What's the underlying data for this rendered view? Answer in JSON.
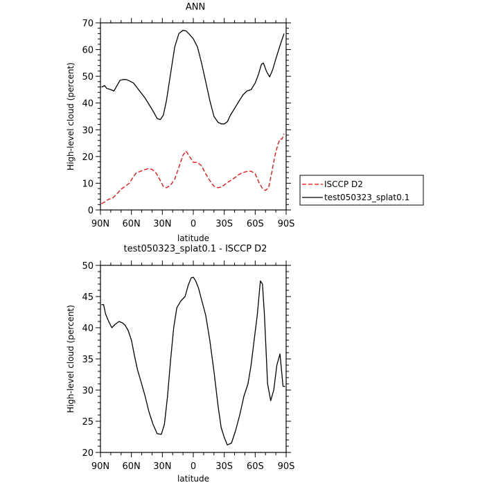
{
  "chart_data": [
    {
      "type": "line",
      "title": "ANN",
      "xlabel": "latitude",
      "ylabel": "High-level cloud (percent)",
      "xlim": [
        90,
        -90
      ],
      "ylim": [
        0,
        70
      ],
      "x_ticks": [
        {
          "value": 90,
          "label": "90N"
        },
        {
          "value": 60,
          "label": "60N"
        },
        {
          "value": 30,
          "label": "30N"
        },
        {
          "value": 0,
          "label": "0"
        },
        {
          "value": -30,
          "label": "30S"
        },
        {
          "value": -60,
          "label": "60S"
        },
        {
          "value": -90,
          "label": "90S"
        }
      ],
      "y_ticks": [
        0,
        10,
        20,
        30,
        40,
        50,
        60,
        70
      ],
      "grid": false,
      "legend_position": "right",
      "series": [
        {
          "name": "ISCCP D2",
          "color": "#ff0000",
          "dash": "dashed",
          "x": [
            89,
            86,
            82,
            78,
            74,
            70,
            66,
            62,
            58,
            55,
            52,
            48,
            44,
            40,
            36,
            32,
            29,
            26,
            22,
            18,
            14,
            10,
            7,
            4,
            0,
            -4,
            -8,
            -12,
            -16,
            -20,
            -24,
            -28,
            -32,
            -36,
            -40,
            -44,
            -48,
            -52,
            -56,
            -60,
            -64,
            -67,
            -70,
            -73,
            -76,
            -79,
            -82,
            -84,
            -86,
            -88
          ],
          "y": [
            2.3,
            3,
            4,
            4.5,
            6,
            7.8,
            8.8,
            10,
            12.5,
            14,
            14.3,
            15,
            15.4,
            15.2,
            13.8,
            11,
            8.8,
            8.3,
            9.3,
            11.5,
            16,
            20.5,
            22,
            20.2,
            17.8,
            17.8,
            16.5,
            13.5,
            11,
            8.9,
            8.3,
            8.7,
            10,
            11,
            12,
            13.2,
            14,
            14.4,
            14.5,
            13.5,
            10,
            8,
            7.3,
            8.3,
            14,
            20,
            24.5,
            26.5,
            26.5,
            28.5
          ]
        },
        {
          "name": "test050323_splat0.1",
          "color": "#000000",
          "dash": "solid",
          "x": [
            89,
            86,
            84,
            80,
            77,
            74,
            71,
            68,
            65,
            62,
            58,
            55,
            51,
            47,
            43,
            39,
            35,
            32,
            29,
            26,
            22,
            18,
            14,
            10,
            7,
            4,
            0,
            -4,
            -8,
            -12,
            -16,
            -20,
            -24,
            -27,
            -30,
            -33,
            -36,
            -40,
            -44,
            -48,
            -52,
            -56,
            -60,
            -63,
            -66,
            -68,
            -71,
            -74,
            -77,
            -80,
            -84,
            -88
          ],
          "y": [
            46,
            46.5,
            45.5,
            45,
            44.5,
            46.5,
            48.5,
            48.8,
            48.8,
            48.3,
            47.5,
            46,
            44,
            42,
            39.5,
            37,
            34.2,
            33.8,
            35.5,
            41,
            51,
            61,
            66,
            67.2,
            67,
            65.8,
            64,
            61,
            55,
            48,
            41,
            35,
            32.8,
            32.2,
            32.2,
            33,
            35.5,
            38,
            40.5,
            43,
            44.5,
            45,
            47.5,
            50.5,
            54.5,
            55,
            51.8,
            49.8,
            52.5,
            56.5,
            61.5,
            66
          ]
        }
      ]
    },
    {
      "type": "line",
      "title": "test050323_splat0.1 - ISCCP D2",
      "xlabel": "latitude",
      "ylabel": "High-level cloud (percent)",
      "xlim": [
        90,
        -90
      ],
      "ylim": [
        20,
        50
      ],
      "x_ticks": [
        {
          "value": 90,
          "label": "90N"
        },
        {
          "value": 60,
          "label": "60N"
        },
        {
          "value": 30,
          "label": "30N"
        },
        {
          "value": 0,
          "label": "0"
        },
        {
          "value": -30,
          "label": "30S"
        },
        {
          "value": -60,
          "label": "60S"
        },
        {
          "value": -90,
          "label": "90S"
        }
      ],
      "y_ticks": [
        20,
        25,
        30,
        35,
        40,
        45,
        50
      ],
      "grid": false,
      "series": [
        {
          "color": "#000000",
          "dash": "solid",
          "x": [
            89,
            87,
            85,
            82,
            79,
            76,
            72,
            69,
            66,
            63,
            60,
            57,
            54,
            51,
            47,
            43,
            39,
            35,
            31,
            28,
            25,
            22,
            19,
            16,
            12,
            8,
            5,
            2,
            0,
            -2,
            -5,
            -8,
            -12,
            -16,
            -20,
            -24,
            -27,
            -30,
            -33,
            -37,
            -41,
            -45,
            -49,
            -53,
            -56,
            -59,
            -62,
            -65,
            -67,
            -69,
            -72,
            -75,
            -78,
            -81,
            -84,
            -87,
            -89
          ],
          "y": [
            43.7,
            43.7,
            42.2,
            41,
            40,
            40.5,
            41,
            40.8,
            40.4,
            39.5,
            38,
            35.5,
            33.2,
            31.5,
            29.2,
            26.5,
            24.5,
            23,
            22.9,
            24.5,
            29,
            34.8,
            40,
            43.2,
            44.3,
            45,
            46.8,
            48,
            48.1,
            47.6,
            46.4,
            44.5,
            42,
            38,
            33,
            27.5,
            24,
            22.4,
            21.2,
            21.5,
            23.5,
            26,
            29,
            31,
            34,
            38,
            42,
            47.5,
            47,
            42,
            31,
            28.3,
            30,
            34,
            35.8,
            30.6,
            30.6
          ]
        }
      ]
    }
  ]
}
